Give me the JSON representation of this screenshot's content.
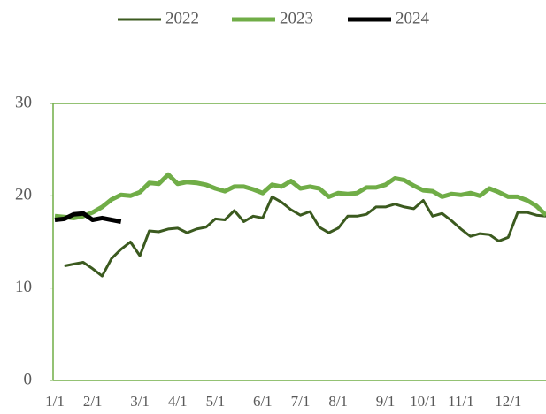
{
  "chart_data": {
    "type": "line",
    "categories": [
      "1/1",
      null,
      null,
      null,
      "2/1",
      null,
      null,
      null,
      null,
      "3/1",
      null,
      null,
      null,
      "4/1",
      null,
      null,
      null,
      "5/1",
      null,
      null,
      null,
      null,
      "6/1",
      null,
      null,
      null,
      "7/1",
      null,
      null,
      null,
      "8/1",
      null,
      null,
      null,
      null,
      "9/1",
      null,
      null,
      null,
      "10/1",
      null,
      null,
      null,
      "11/1",
      null,
      null,
      null,
      null,
      "12/1",
      null,
      null,
      null,
      null
    ],
    "series": [
      {
        "name": "2022",
        "color": "#3b5a1f",
        "values": [
          null,
          12.4,
          12.6,
          12.8,
          12.1,
          11.3,
          13.2,
          14.2,
          15.0,
          13.5,
          16.2,
          16.1,
          16.4,
          16.5,
          16.0,
          16.4,
          16.6,
          17.5,
          17.4,
          18.4,
          17.2,
          17.8,
          17.6,
          19.9,
          19.3,
          18.5,
          17.9,
          18.3,
          16.6,
          16.0,
          16.5,
          17.8,
          17.8,
          18.0,
          18.8,
          18.8,
          19.1,
          18.8,
          18.6,
          19.5,
          17.8,
          18.1,
          17.3,
          16.4,
          15.6,
          15.9,
          15.8,
          15.1,
          15.5,
          18.2,
          18.2,
          17.9,
          17.8
        ]
      },
      {
        "name": "2023",
        "color": "#70ad47",
        "values": [
          17.8,
          17.7,
          17.6,
          17.8,
          18.2,
          18.8,
          19.6,
          20.1,
          20.0,
          20.4,
          21.4,
          21.3,
          22.3,
          21.3,
          21.5,
          21.4,
          21.2,
          20.8,
          20.5,
          21.0,
          21.0,
          20.7,
          20.3,
          21.2,
          21.0,
          21.6,
          20.8,
          21.0,
          20.8,
          19.9,
          20.3,
          20.2,
          20.3,
          20.9,
          20.9,
          21.2,
          21.9,
          21.7,
          21.1,
          20.6,
          20.5,
          19.9,
          20.2,
          20.1,
          20.3,
          20.0,
          20.8,
          20.4,
          19.9,
          19.9,
          19.5,
          18.9,
          17.9
        ]
      },
      {
        "name": "2024",
        "color": "#000000",
        "values": [
          17.4,
          17.5,
          18.0,
          18.1,
          17.4,
          17.6,
          17.4,
          17.2,
          null,
          null,
          null,
          null,
          null,
          null,
          null,
          null,
          null,
          null,
          null,
          null,
          null,
          null,
          null,
          null,
          null,
          null,
          null,
          null,
          null,
          null,
          null,
          null,
          null,
          null,
          null,
          null,
          null,
          null,
          null,
          null,
          null,
          null,
          null,
          null,
          null,
          null,
          null,
          null,
          null,
          null,
          null,
          null,
          null
        ]
      }
    ],
    "ylim": [
      0,
      30
    ],
    "yticks": [
      0,
      10,
      20,
      30
    ],
    "legend": "top"
  }
}
